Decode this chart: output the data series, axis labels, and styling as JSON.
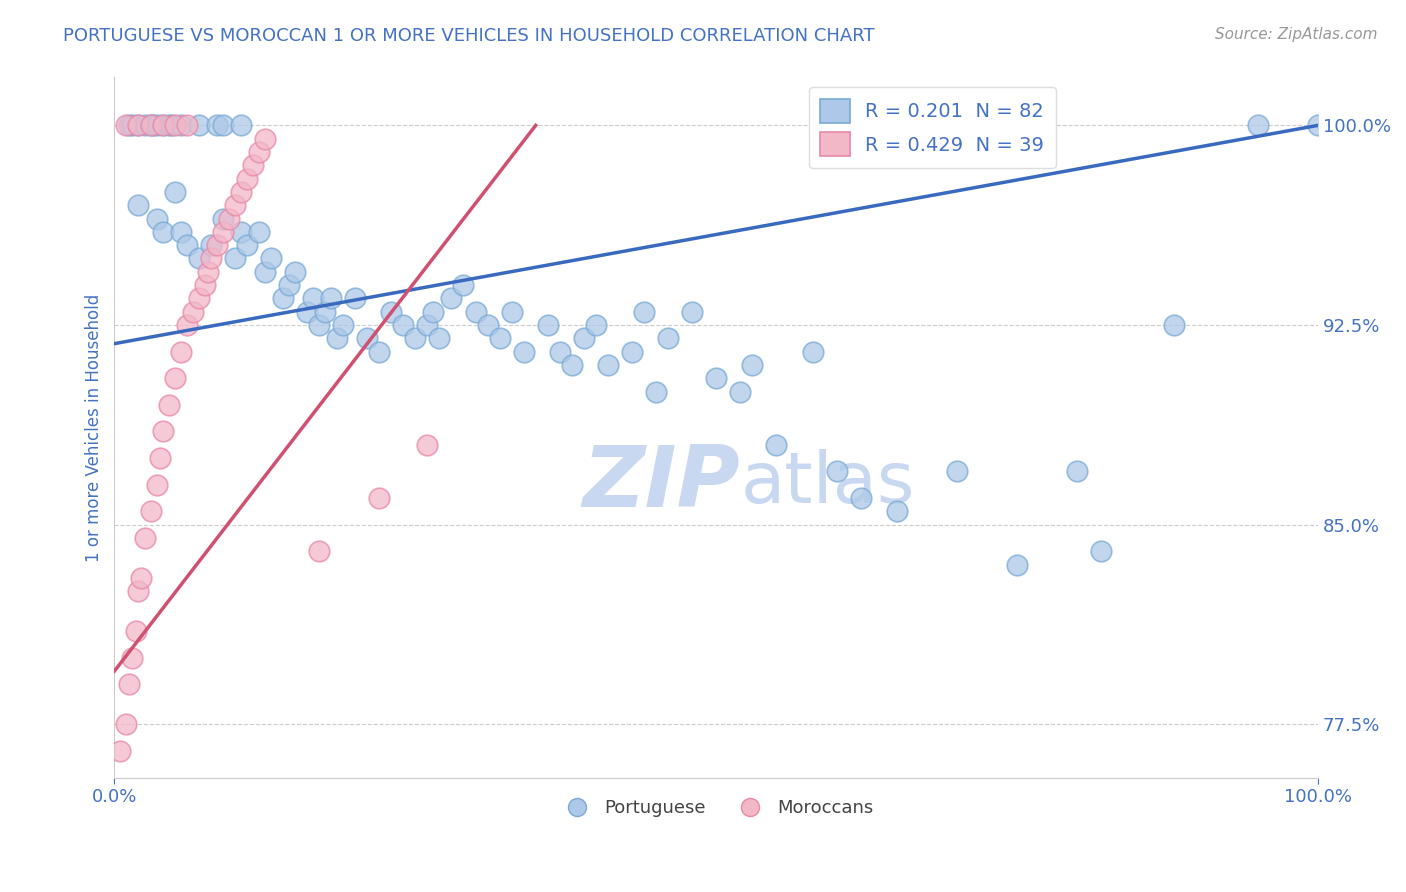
{
  "title": "PORTUGUESE VS MOROCCAN 1 OR MORE VEHICLES IN HOUSEHOLD CORRELATION CHART",
  "source_text": "Source: ZipAtlas.com",
  "ylabel": "1 or more Vehicles in Household",
  "xlim": [
    0,
    100
  ],
  "ylim": [
    75.5,
    101.8
  ],
  "yticks": [
    77.5,
    85.0,
    92.5,
    100.0
  ],
  "ytick_labels": [
    "77.5%",
    "85.0%",
    "92.5%",
    "100.0%"
  ],
  "blue_color": "#adc8e8",
  "pink_color": "#f2b8c8",
  "blue_edge": "#7aaad4",
  "pink_edge": "#e888a8",
  "trend_blue": "#3a6abf",
  "trend_pink": "#d05070",
  "grid_color": "#cccccc",
  "background_color": "#ffffff",
  "title_color": "#4472c4",
  "axis_label_color": "#4472c4",
  "tick_color": "#4472c4",
  "source_color": "#999999",
  "watermark_color": "#c8d8f0",
  "blue_R": 0.201,
  "blue_N": 82,
  "pink_R": 0.429,
  "pink_N": 39,
  "blue_trend_start_x": 0,
  "blue_trend_start_y": 91.8,
  "blue_trend_end_x": 100,
  "blue_trend_end_y": 100.0,
  "pink_trend_start_x": 0,
  "pink_trend_start_y": 79.5,
  "pink_trend_end_x": 35,
  "pink_trend_end_y": 100.0,
  "blue_points": [
    [
      1.2,
      100.0
    ],
    [
      1.5,
      100.0
    ],
    [
      2.0,
      100.0
    ],
    [
      2.5,
      100.0
    ],
    [
      3.0,
      100.0
    ],
    [
      3.2,
      100.0
    ],
    [
      3.5,
      100.0
    ],
    [
      4.0,
      100.0
    ],
    [
      4.5,
      100.0
    ],
    [
      4.8,
      100.0
    ],
    [
      5.5,
      100.0
    ],
    [
      7.0,
      100.0
    ],
    [
      8.5,
      100.0
    ],
    [
      9.0,
      100.0
    ],
    [
      10.5,
      100.0
    ],
    [
      2.0,
      97.0
    ],
    [
      3.5,
      96.5
    ],
    [
      4.0,
      96.0
    ],
    [
      5.0,
      97.5
    ],
    [
      5.5,
      96.0
    ],
    [
      6.0,
      95.5
    ],
    [
      7.0,
      95.0
    ],
    [
      8.0,
      95.5
    ],
    [
      9.0,
      96.5
    ],
    [
      10.0,
      95.0
    ],
    [
      10.5,
      96.0
    ],
    [
      11.0,
      95.5
    ],
    [
      12.0,
      96.0
    ],
    [
      12.5,
      94.5
    ],
    [
      13.0,
      95.0
    ],
    [
      14.0,
      93.5
    ],
    [
      14.5,
      94.0
    ],
    [
      15.0,
      94.5
    ],
    [
      16.0,
      93.0
    ],
    [
      16.5,
      93.5
    ],
    [
      17.0,
      92.5
    ],
    [
      17.5,
      93.0
    ],
    [
      18.0,
      93.5
    ],
    [
      18.5,
      92.0
    ],
    [
      19.0,
      92.5
    ],
    [
      20.0,
      93.5
    ],
    [
      21.0,
      92.0
    ],
    [
      22.0,
      91.5
    ],
    [
      23.0,
      93.0
    ],
    [
      24.0,
      92.5
    ],
    [
      25.0,
      92.0
    ],
    [
      26.0,
      92.5
    ],
    [
      26.5,
      93.0
    ],
    [
      27.0,
      92.0
    ],
    [
      28.0,
      93.5
    ],
    [
      29.0,
      94.0
    ],
    [
      30.0,
      93.0
    ],
    [
      31.0,
      92.5
    ],
    [
      32.0,
      92.0
    ],
    [
      33.0,
      93.0
    ],
    [
      34.0,
      91.5
    ],
    [
      36.0,
      92.5
    ],
    [
      37.0,
      91.5
    ],
    [
      38.0,
      91.0
    ],
    [
      39.0,
      92.0
    ],
    [
      40.0,
      92.5
    ],
    [
      41.0,
      91.0
    ],
    [
      43.0,
      91.5
    ],
    [
      44.0,
      93.0
    ],
    [
      45.0,
      90.0
    ],
    [
      46.0,
      92.0
    ],
    [
      48.0,
      93.0
    ],
    [
      50.0,
      90.5
    ],
    [
      52.0,
      90.0
    ],
    [
      53.0,
      91.0
    ],
    [
      55.0,
      88.0
    ],
    [
      58.0,
      91.5
    ],
    [
      60.0,
      87.0
    ],
    [
      62.0,
      86.0
    ],
    [
      65.0,
      85.5
    ],
    [
      70.0,
      87.0
    ],
    [
      75.0,
      83.5
    ],
    [
      80.0,
      87.0
    ],
    [
      82.0,
      84.0
    ],
    [
      88.0,
      92.5
    ],
    [
      95.0,
      100.0
    ],
    [
      100.0,
      100.0
    ]
  ],
  "pink_points": [
    [
      0.5,
      76.5
    ],
    [
      1.0,
      77.5
    ],
    [
      1.2,
      79.0
    ],
    [
      1.5,
      80.0
    ],
    [
      1.8,
      81.0
    ],
    [
      2.0,
      82.5
    ],
    [
      2.2,
      83.0
    ],
    [
      2.5,
      84.5
    ],
    [
      3.0,
      85.5
    ],
    [
      3.5,
      86.5
    ],
    [
      3.8,
      87.5
    ],
    [
      4.0,
      88.5
    ],
    [
      4.5,
      89.5
    ],
    [
      5.0,
      90.5
    ],
    [
      5.5,
      91.5
    ],
    [
      6.0,
      92.5
    ],
    [
      6.5,
      93.0
    ],
    [
      7.0,
      93.5
    ],
    [
      7.5,
      94.0
    ],
    [
      7.8,
      94.5
    ],
    [
      8.0,
      95.0
    ],
    [
      8.5,
      95.5
    ],
    [
      9.0,
      96.0
    ],
    [
      9.5,
      96.5
    ],
    [
      10.0,
      97.0
    ],
    [
      10.5,
      97.5
    ],
    [
      11.0,
      98.0
    ],
    [
      11.5,
      98.5
    ],
    [
      12.0,
      99.0
    ],
    [
      12.5,
      99.5
    ],
    [
      1.0,
      100.0
    ],
    [
      2.0,
      100.0
    ],
    [
      3.0,
      100.0
    ],
    [
      4.0,
      100.0
    ],
    [
      5.0,
      100.0
    ],
    [
      6.0,
      100.0
    ],
    [
      17.0,
      84.0
    ],
    [
      22.0,
      86.0
    ],
    [
      26.0,
      88.0
    ]
  ]
}
